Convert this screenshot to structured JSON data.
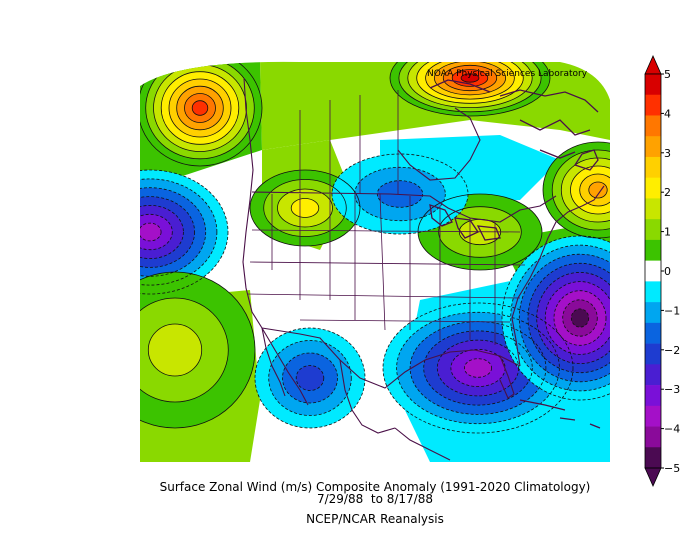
{
  "map": {
    "credit": "NOAA Physical Sciences Laboratory",
    "title": "Surface Zonal Wind (m/s) Composite Anomaly (1991-2020 Climatology)",
    "dates": "7/29/88  to 8/17/88",
    "source": "NCEP/NCAR Reanalysis"
  },
  "colorbar": {
    "labels": [
      "5",
      "4",
      "3",
      "2",
      "1",
      "0",
      "−1",
      "−2",
      "−3",
      "−4",
      "−5"
    ],
    "bins": [
      {
        "min": 4.5,
        "max": 5,
        "color": "#d80000"
      },
      {
        "min": 4,
        "max": 4.5,
        "color": "#ff3000"
      },
      {
        "min": 3.5,
        "max": 4,
        "color": "#ff7700"
      },
      {
        "min": 3,
        "max": 3.5,
        "color": "#ffa200"
      },
      {
        "min": 2.5,
        "max": 3,
        "color": "#ffd000"
      },
      {
        "min": 2,
        "max": 2.5,
        "color": "#ffee00"
      },
      {
        "min": 1.5,
        "max": 2,
        "color": "#c8e600"
      },
      {
        "min": 1,
        "max": 1.5,
        "color": "#8ad900"
      },
      {
        "min": 0.5,
        "max": 1,
        "color": "#3cc300"
      },
      {
        "min": -0.5,
        "max": 0.5,
        "color": "#ffffff"
      },
      {
        "min": -1,
        "max": -0.5,
        "color": "#00eaff"
      },
      {
        "min": -1.5,
        "max": -1,
        "color": "#00a6f0"
      },
      {
        "min": -2,
        "max": -1.5,
        "color": "#0a64e0"
      },
      {
        "min": -2.5,
        "max": -2,
        "color": "#1e3cd0"
      },
      {
        "min": -3,
        "max": -2.5,
        "color": "#4a1ed2"
      },
      {
        "min": -3.5,
        "max": -3,
        "color": "#7a10d8"
      },
      {
        "min": -4,
        "max": -3.5,
        "color": "#a410c8"
      },
      {
        "min": -4.5,
        "max": -4,
        "color": "#8a0a9a"
      },
      {
        "min": -5,
        "max": -4.5,
        "color": "#4b0a52"
      }
    ],
    "over_color": "#d80000",
    "under_color": "#4b0a52"
  },
  "anomaly_centers": [
    {
      "name": "nw-pacific-positive",
      "value": 4.2
    },
    {
      "name": "canada-arctic-positive",
      "value": 4.8
    },
    {
      "name": "ne-atlantic-positive",
      "value": 3.2
    },
    {
      "name": "rockies-positive",
      "value": 2.2
    },
    {
      "name": "great-lakes-positive",
      "value": 1.8
    },
    {
      "name": "ne-pacific-negative",
      "value": -3.6
    },
    {
      "name": "hudson-negative",
      "value": -1.6
    },
    {
      "name": "mexico-negative",
      "value": -2.3
    },
    {
      "name": "gulf-negative",
      "value": -3.8
    },
    {
      "name": "w-atlantic-negative",
      "value": -4.6
    },
    {
      "name": "sw-pacific-positive",
      "value": 1.7
    }
  ]
}
